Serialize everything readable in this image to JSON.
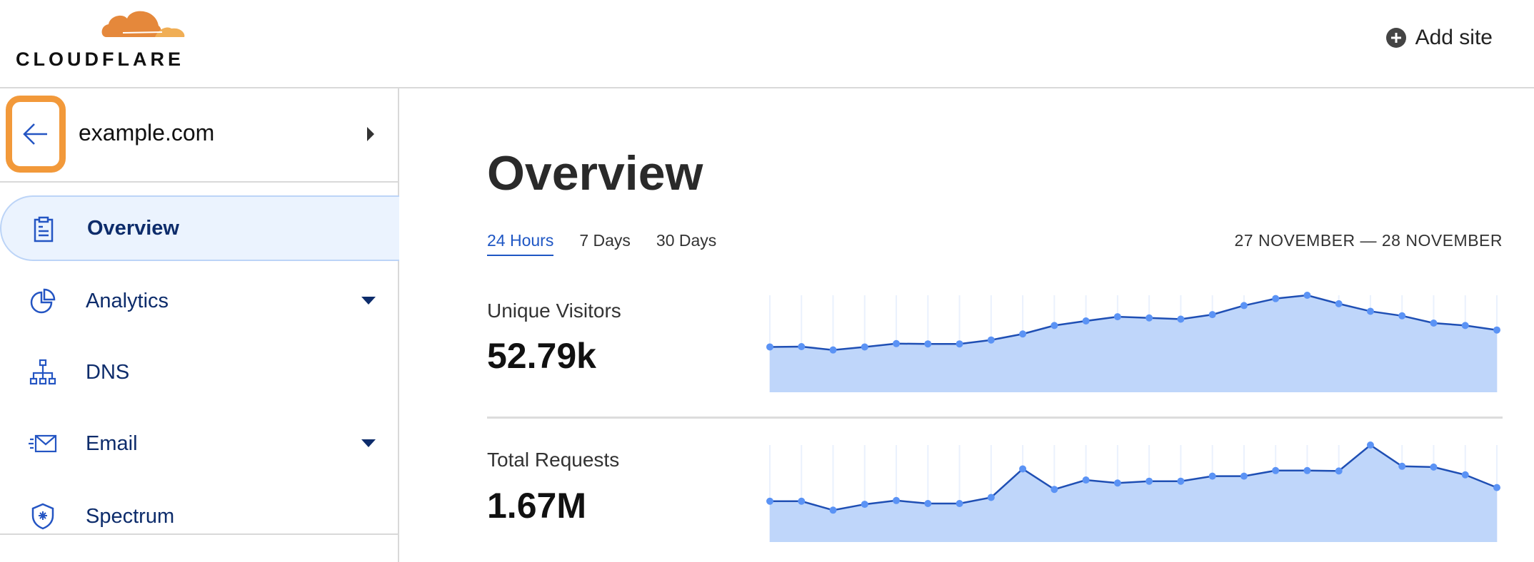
{
  "header": {
    "logo_text": "CLOUDFLARE",
    "add_site_label": "Add site",
    "add_site_icon": "plus-circle-icon"
  },
  "sidebar": {
    "site_name": "example.com",
    "back_icon": "arrow-left-icon",
    "items": [
      {
        "label": "Overview",
        "icon": "clipboard-icon",
        "active": true,
        "dropdown": false
      },
      {
        "label": "Analytics",
        "icon": "pie-chart-icon",
        "active": false,
        "dropdown": true
      },
      {
        "label": "DNS",
        "icon": "sitemap-icon",
        "active": false,
        "dropdown": false
      },
      {
        "label": "Email",
        "icon": "envelope-icon",
        "active": false,
        "dropdown": true
      },
      {
        "label": "Spectrum",
        "icon": "shield-icon",
        "active": false,
        "dropdown": false
      }
    ]
  },
  "main": {
    "title": "Overview",
    "tabs": [
      {
        "label": "24 Hours",
        "active": true
      },
      {
        "label": "7 Days",
        "active": false
      },
      {
        "label": "30 Days",
        "active": false
      }
    ],
    "date_range": "27 NOVEMBER — 28 NOVEMBER",
    "metrics": [
      {
        "label": "Unique Visitors",
        "value": "52.79k"
      },
      {
        "label": "Total Requests",
        "value": "1.67M"
      }
    ]
  },
  "colors": {
    "accent": "#1e56c4",
    "line": "#1f4fb4",
    "dot": "#5b93f5",
    "fill": "#bfd6fa",
    "grid": "#eaf1fd",
    "highlight": "#f2993a"
  },
  "chart_data": [
    {
      "type": "area",
      "points": 24,
      "values": [
        1500,
        1510,
        1400,
        1500,
        1610,
        1600,
        1600,
        1730,
        1930,
        2210,
        2360,
        2500,
        2460,
        2420,
        2570,
        2870,
        3100,
        3210,
        2930,
        2680,
        2530,
        2290,
        2210,
        2060
      ],
      "ylim": [
        0,
        3210
      ],
      "grid": "vertical"
    },
    {
      "type": "area",
      "points": 24,
      "values": [
        48800,
        48800,
        38100,
        45100,
        49600,
        46000,
        46000,
        53300,
        87400,
        62900,
        74100,
        70500,
        72700,
        72700,
        78700,
        78700,
        85400,
        85400,
        84900,
        115900,
        90500,
        89600,
        80300,
        65100
      ],
      "ylim": [
        0,
        115900
      ],
      "grid": "vertical"
    }
  ]
}
